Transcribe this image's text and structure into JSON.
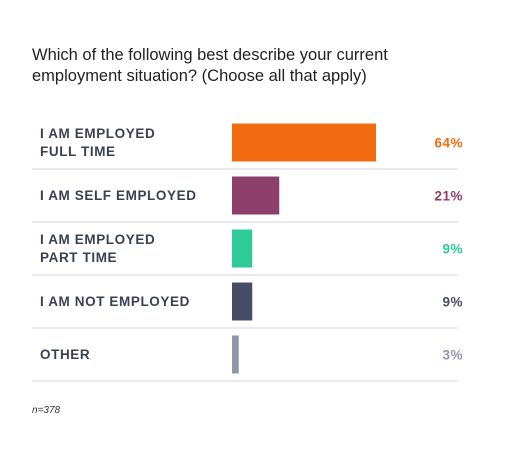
{
  "chart_data": {
    "type": "bar",
    "title": "Which of the following best describe your current\nemployment situation? (Choose all that apply)",
    "categories": [
      "I AM EMPLOYED\nFULL TIME",
      "I AM SELF EMPLOYED",
      "I AM EMPLOYED\nPART TIME",
      "I AM NOT EMPLOYED",
      "OTHER"
    ],
    "values": [
      64,
      21,
      9,
      9,
      3
    ],
    "value_labels": [
      "64%",
      "21%",
      "9%",
      "9%",
      "3%"
    ],
    "colors": [
      "#f26b10",
      "#8c3f6b",
      "#2ecb96",
      "#474d67",
      "#8e96aa"
    ],
    "note": "n=378"
  }
}
